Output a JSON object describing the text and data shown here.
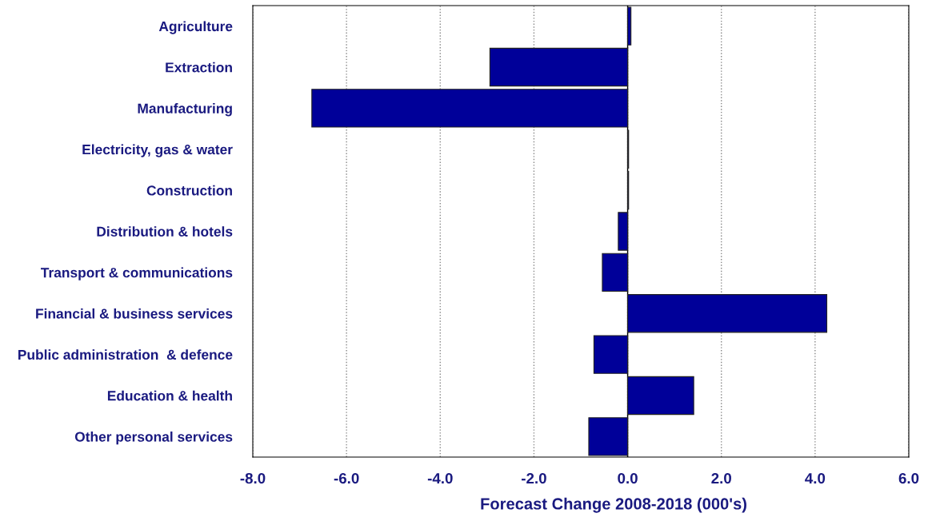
{
  "chart_data": {
    "type": "bar",
    "orientation": "horizontal",
    "xlabel": "Forecast Change 2008-2018 (000's)",
    "categories": [
      "Agriculture",
      "Extraction",
      "Manufacturing",
      "Electricity, gas & water",
      "Construction",
      "Distribution & hotels",
      "Transport & communications",
      "Financial & business services",
      "Public administration  & defence",
      "Education & health",
      "Other personal services"
    ],
    "values": [
      0.07,
      -2.94,
      -6.74,
      0.02,
      0.02,
      -0.2,
      -0.54,
      4.25,
      -0.72,
      1.41,
      -0.83
    ],
    "color": "#000099",
    "xlim": [
      -8,
      6
    ],
    "xticks": [
      {
        "value": -8,
        "label": "-8.0"
      },
      {
        "value": -6,
        "label": "-6.0"
      },
      {
        "value": -4,
        "label": "-4.0"
      },
      {
        "value": -2,
        "label": "-2.0"
      },
      {
        "value": 0,
        "label": "0.0"
      },
      {
        "value": 2,
        "label": "2.0"
      },
      {
        "value": 4,
        "label": "4.0"
      },
      {
        "value": 6,
        "label": "6.0"
      }
    ],
    "grid": "x"
  }
}
